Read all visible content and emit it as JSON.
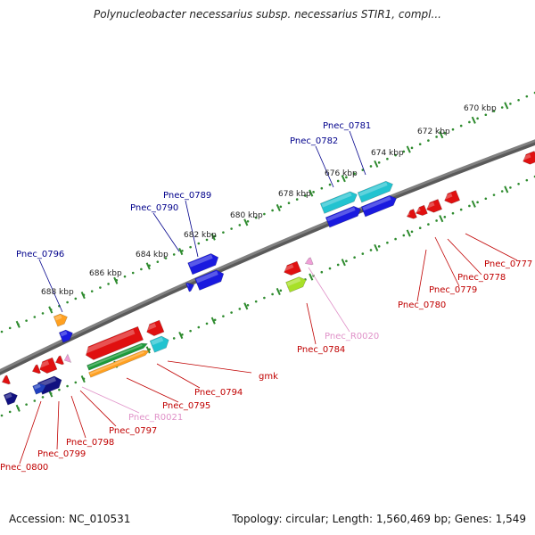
{
  "header": {
    "title": "Polynucleobacter necessarius subsp. necessarius STIR1, compl..."
  },
  "footer": {
    "accession_label": "Accession: NC_010531",
    "topology": "Topology: circular;",
    "length": "Length: 1,560,469 bp;",
    "genes": "Genes: 1,549"
  },
  "colors": {
    "forward_label": "#00008b",
    "reverse_label": "#c00000",
    "rna_label": "#e091c8",
    "backbone": "#808080",
    "tick": "#2e8b2e"
  },
  "scale": {
    "unit": "kbp",
    "ticks": [
      {
        "label": "670 kbp"
      },
      {
        "label": "672 kbp"
      },
      {
        "label": "674 kbp"
      },
      {
        "label": "676 kbp"
      },
      {
        "label": "678 kbp"
      },
      {
        "label": "680 kbp"
      },
      {
        "label": "682 kbp"
      },
      {
        "label": "684 kbp"
      },
      {
        "label": "686 kbp"
      },
      {
        "label": "688 kbp"
      }
    ]
  },
  "labels": {
    "forward": [
      {
        "name": "Pnec_0781"
      },
      {
        "name": "Pnec_0782"
      },
      {
        "name": "Pnec_0789"
      },
      {
        "name": "Pnec_0790"
      },
      {
        "name": "Pnec_0796"
      }
    ],
    "reverse": [
      {
        "name": "Pnec_0777"
      },
      {
        "name": "Pnec_0778"
      },
      {
        "name": "Pnec_0779"
      },
      {
        "name": "Pnec_0780"
      },
      {
        "name": "Pnec_0784"
      },
      {
        "name": "gmk"
      },
      {
        "name": "Pnec_0794"
      },
      {
        "name": "Pnec_0795"
      },
      {
        "name": "Pnec_0797"
      },
      {
        "name": "Pnec_0798"
      },
      {
        "name": "Pnec_0799"
      },
      {
        "name": "Pnec_0800"
      }
    ],
    "rna": [
      {
        "name": "Pnec_R0020"
      },
      {
        "name": "Pnec_R0021"
      }
    ]
  }
}
